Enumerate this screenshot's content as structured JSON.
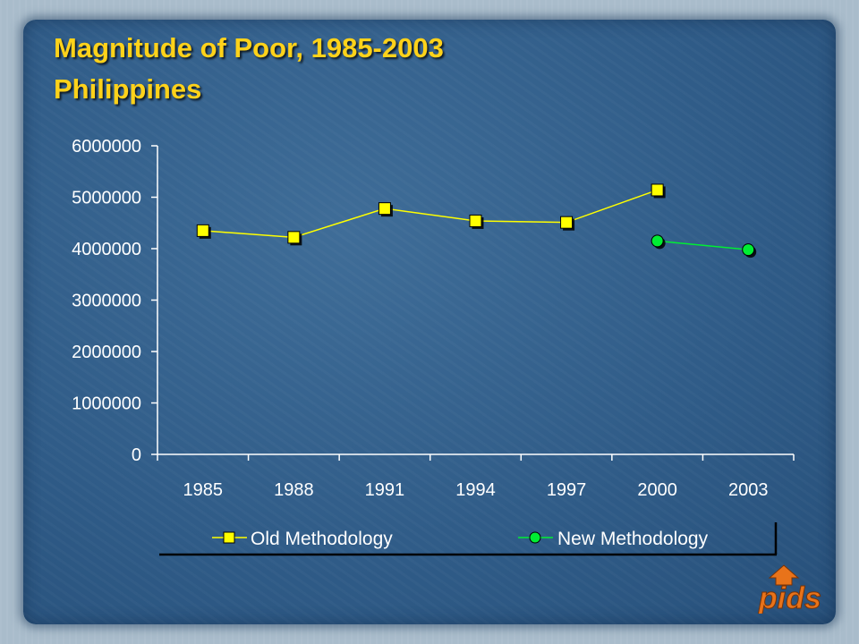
{
  "title_line1": "Magnitude of Poor, 1985-2003",
  "title_line2": "Philippines",
  "colors": {
    "title": "#ffd21a",
    "old_series": "#ffff00",
    "new_series": "#00ee33",
    "axis": "#ffffff"
  },
  "chart_data": {
    "type": "line",
    "title": "Magnitude of Poor, 1985-2003",
    "subtitle": "Philippines",
    "categories": [
      "1985",
      "1988",
      "1991",
      "1994",
      "1997",
      "2000",
      "2003"
    ],
    "series": [
      {
        "name": "Old Methodology",
        "marker": "square",
        "color": "#ffff00",
        "values": [
          4350000,
          4220000,
          4780000,
          4540000,
          4510000,
          5140000,
          null
        ]
      },
      {
        "name": "New Methodology",
        "marker": "circle",
        "color": "#00ee33",
        "values": [
          null,
          null,
          null,
          null,
          null,
          4150000,
          3980000
        ]
      }
    ],
    "yticks": [
      "0",
      "1000000",
      "2000000",
      "3000000",
      "4000000",
      "5000000",
      "6000000"
    ],
    "ylim": [
      0,
      6000000
    ],
    "xlabel": "",
    "ylabel": "",
    "grid": false,
    "legend": "bottom"
  },
  "logo": {
    "text": "pids",
    "icon": "house-arrow-icon"
  }
}
